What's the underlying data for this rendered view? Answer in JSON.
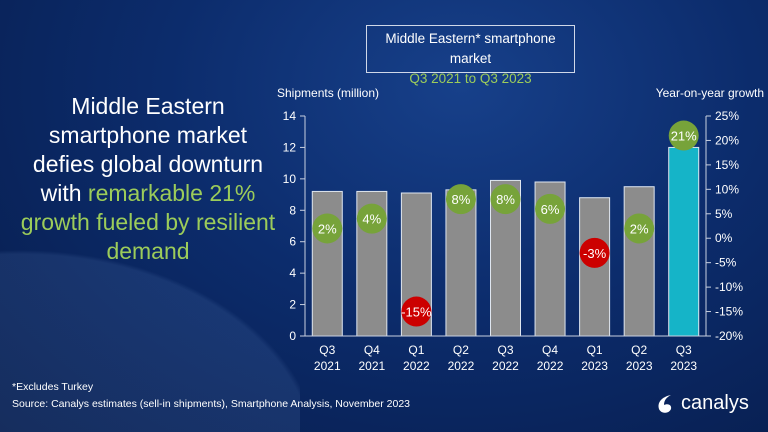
{
  "headline": {
    "line1": "Middle Eastern smartphone market defies global downturn with",
    "line2": "remarkable 21% growth fueled by resilient demand"
  },
  "title_box": {
    "title": "Middle Eastern* smartphone market",
    "subtitle": "Q3 2021 to Q3 2023"
  },
  "chart_data": {
    "type": "bar",
    "categories": [
      [
        "Q3",
        "2021"
      ],
      [
        "Q4",
        "2021"
      ],
      [
        "Q1",
        "2022"
      ],
      [
        "Q2",
        "2022"
      ],
      [
        "Q3",
        "2022"
      ],
      [
        "Q4",
        "2022"
      ],
      [
        "Q1",
        "2023"
      ],
      [
        "Q2",
        "2023"
      ],
      [
        "Q3",
        "2023"
      ]
    ],
    "ylabel": "Shipments (million)",
    "y2label": "Year-on-year growth",
    "ylim": [
      0,
      14
    ],
    "yticks": [
      "0",
      "2",
      "4",
      "6",
      "8",
      "10",
      "12",
      "14"
    ],
    "y2lim": [
      -20,
      25
    ],
    "y2ticks": [
      "-20%",
      "-15%",
      "-10%",
      "-5%",
      "0%",
      "5%",
      "10%",
      "15%",
      "20%",
      "25%"
    ],
    "series": [
      {
        "values": [
          9.2,
          9.2,
          9.1,
          9.3,
          9.9,
          9.8,
          8.8,
          9.5,
          12.0
        ]
      },
      {
        "values": [
          2,
          4,
          -15,
          8,
          8,
          6,
          -3,
          2,
          21
        ],
        "labels": [
          "2%",
          "4%",
          "-15%",
          "8%",
          "8%",
          "6%",
          "-3%",
          "2%",
          "21%"
        ]
      }
    ],
    "colors": {
      "bar": "#8c8c8c",
      "highlight_bar": "#15b4c8",
      "positive": "#77a33a",
      "negative": "#cc0000"
    }
  },
  "footnote": "*Excludes Turkey",
  "source": "Source:  Canalys estimates (sell-in shipments), Smartphone  Analysis, November  2023",
  "logo": "canalys"
}
